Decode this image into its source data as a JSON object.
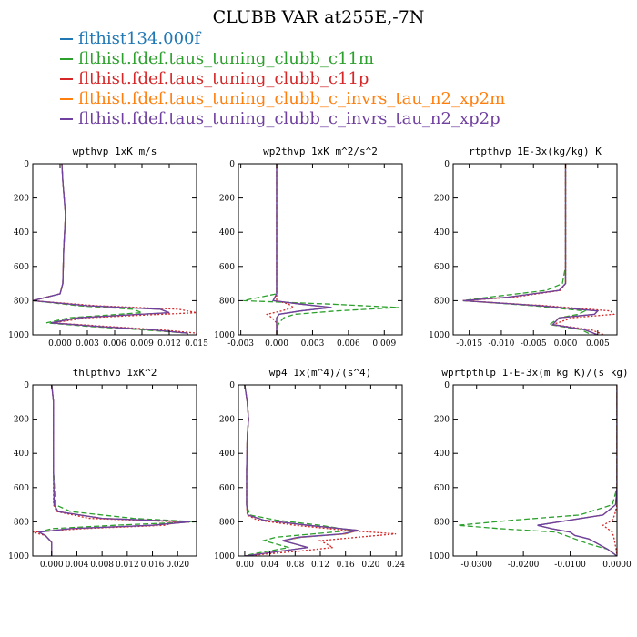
{
  "title": "CLUBB VAR at255E,-7N",
  "legend": [
    {
      "label": "flthist134.000f",
      "color": "#1f77b4"
    },
    {
      "label": "flthist.fdef.taus_tuning_clubb_c11m",
      "color": "#2ca02c"
    },
    {
      "label": "flthist.fdef.taus_tuning_clubb_c11p",
      "color": "#d62728"
    },
    {
      "label": "flthist.fdef.taus_tuning_clubb_c_invrs_tau_n2_xp2m",
      "color": "#ff7f0e"
    },
    {
      "label": "flthist.fdef.taus_tuning_clubb_c_invrs_tau_n2_xp2p",
      "color": "#7040a0"
    }
  ],
  "chart_data": [
    {
      "type": "line",
      "title": "wpthvp  1xK m/s",
      "xlim": [
        -0.003,
        0.015
      ],
      "xticks": [
        "0.000",
        "0.003",
        "0.006",
        "0.009",
        "0.012",
        "0.015"
      ],
      "ylim": [
        1000,
        0
      ],
      "yticks": [
        "0",
        "200",
        "400",
        "600",
        "800",
        "1000"
      ],
      "y": [
        0,
        100,
        300,
        500,
        700,
        760,
        800,
        830,
        850,
        870,
        900,
        930,
        950,
        970,
        990,
        1000
      ],
      "series": [
        {
          "name": "flthist134.000f",
          "values": [
            0.0002,
            0.0003,
            0.0006,
            0.0004,
            0.0003,
            0.0,
            -0.003,
            0.003,
            0.011,
            0.012,
            0.002,
            -0.001,
            0.004,
            0.01,
            0.014,
            0.014
          ]
        },
        {
          "name": "flthist.fdef.taus_tuning_clubb_c11m",
          "values": [
            0.0002,
            0.0003,
            0.0006,
            0.0004,
            0.0003,
            0.0,
            -0.003,
            0.002,
            0.008,
            0.009,
            0.001,
            -0.0015,
            0.003,
            0.009,
            0.014,
            0.014
          ]
        },
        {
          "name": "flthist.fdef.taus_tuning_clubb_c11p",
          "values": [
            0.0002,
            0.0003,
            0.0006,
            0.0004,
            0.0003,
            0.0,
            -0.003,
            0.004,
            0.013,
            0.015,
            0.003,
            -0.0008,
            0.005,
            0.011,
            0.015,
            0.015
          ]
        },
        {
          "name": "flthist.fdef.taus_tuning_clubb_c_invrs_tau_n2_xp2m",
          "values": [
            0.0002,
            0.0003,
            0.0006,
            0.0004,
            0.0003,
            0.0,
            -0.003,
            0.003,
            0.011,
            0.012,
            0.002,
            -0.001,
            0.004,
            0.01,
            0.014,
            0.014
          ]
        },
        {
          "name": "flthist.fdef.taus_tuning_clubb_c_invrs_tau_n2_xp2p",
          "values": [
            0.0002,
            0.0003,
            0.0006,
            0.0004,
            0.0003,
            0.0,
            -0.003,
            0.003,
            0.011,
            0.012,
            0.002,
            -0.001,
            0.004,
            0.01,
            0.014,
            0.014
          ]
        }
      ]
    },
    {
      "type": "line",
      "title": "wp2thvp  1xK m^2/s^2",
      "xlim": [
        -0.0032,
        0.0105
      ],
      "xticks": [
        "-0.003",
        "0.000",
        "0.003",
        "0.006",
        "0.009"
      ],
      "ylim": [
        1000,
        0
      ],
      "yticks": [
        "0",
        "200",
        "400",
        "600",
        "800",
        "1000"
      ],
      "y": [
        0,
        300,
        600,
        760,
        800,
        820,
        840,
        860,
        880,
        900,
        930,
        960,
        1000
      ],
      "series": [
        {
          "name": "flthist134.000f",
          "values": [
            0.0,
            0.0,
            0.0,
            0.0,
            -0.0003,
            0.002,
            0.0045,
            0.002,
            0.0002,
            0.0,
            0.0,
            0.0,
            0.0
          ]
        },
        {
          "name": "flthist.fdef.taus_tuning_clubb_c11m",
          "values": [
            0.0,
            0.0,
            0.0,
            0.0,
            -0.0028,
            0.0045,
            0.0102,
            0.005,
            0.0015,
            0.0006,
            0.0002,
            0.0,
            0.0
          ]
        },
        {
          "name": "flthist.fdef.taus_tuning_clubb_c11p",
          "values": [
            0.0,
            0.0,
            0.0,
            0.0,
            0.0,
            0.001,
            0.0014,
            0.0004,
            -0.0008,
            -0.0004,
            0.0,
            0.0,
            0.0
          ]
        },
        {
          "name": "flthist.fdef.taus_tuning_clubb_c_invrs_tau_n2_xp2m",
          "values": [
            0.0,
            0.0,
            0.0,
            0.0,
            -0.0003,
            0.002,
            0.0044,
            0.002,
            0.0002,
            0.0,
            0.0,
            0.0,
            0.0
          ]
        },
        {
          "name": "flthist.fdef.taus_tuning_clubb_c_invrs_tau_n2_xp2p",
          "values": [
            0.0,
            0.0,
            0.0,
            0.0,
            -0.0003,
            0.002,
            0.0046,
            0.002,
            0.0002,
            0.0,
            0.0,
            0.0,
            0.0
          ]
        }
      ]
    },
    {
      "type": "line",
      "title": "rtpthvp  1E-3x(kg/kg) K",
      "xlim": [
        -0.0175,
        0.008
      ],
      "xticks": [
        "-0.015",
        "-0.010",
        "-0.005",
        "0.000",
        "0.005"
      ],
      "ylim": [
        1000,
        0
      ],
      "yticks": [
        "0",
        "200",
        "400",
        "600",
        "800",
        "1000"
      ],
      "y": [
        0,
        300,
        600,
        700,
        740,
        780,
        800,
        830,
        860,
        880,
        900,
        940,
        970,
        1000
      ],
      "series": [
        {
          "name": "flthist134.000f",
          "values": [
            0.0,
            0.0,
            0.0,
            0.0,
            -0.001,
            -0.009,
            -0.016,
            -0.004,
            0.005,
            0.0045,
            -0.001,
            -0.002,
            0.003,
            0.005
          ]
        },
        {
          "name": "flthist.fdef.taus_tuning_clubb_c11m",
          "values": [
            0.0,
            0.0,
            0.0,
            -0.0005,
            -0.003,
            -0.012,
            -0.016,
            -0.005,
            0.003,
            0.002,
            -0.001,
            -0.0025,
            0.0025,
            0.004
          ]
        },
        {
          "name": "flthist.fdef.taus_tuning_clubb_c11p",
          "values": [
            0.0,
            0.0,
            0.0,
            0.0,
            -0.0008,
            -0.008,
            -0.016,
            -0.003,
            0.007,
            0.0075,
            0.001,
            -0.002,
            0.004,
            0.006
          ]
        },
        {
          "name": "flthist.fdef.taus_tuning_clubb_c_invrs_tau_n2_xp2m",
          "values": [
            0.0,
            0.0,
            0.0,
            0.0,
            -0.001,
            -0.009,
            -0.016,
            -0.004,
            0.005,
            0.0045,
            -0.001,
            -0.002,
            0.003,
            0.005
          ]
        },
        {
          "name": "flthist.fdef.taus_tuning_clubb_c_invrs_tau_n2_xp2p",
          "values": [
            0.0,
            0.0,
            0.0,
            0.0,
            -0.001,
            -0.009,
            -0.016,
            -0.004,
            0.005,
            0.0045,
            -0.001,
            -0.002,
            0.003,
            0.005
          ]
        }
      ]
    },
    {
      "type": "line",
      "title": "thlpthvp  1xK^2",
      "xlim": [
        -0.003,
        0.023
      ],
      "xticks": [
        "0.000",
        "0.004",
        "0.008",
        "0.012",
        "0.016",
        "0.020"
      ],
      "ylim": [
        1000,
        0
      ],
      "yticks": [
        "0",
        "200",
        "400",
        "600",
        "800",
        "1000"
      ],
      "y": [
        0,
        100,
        300,
        500,
        700,
        740,
        780,
        800,
        820,
        840,
        860,
        880,
        920,
        960,
        1000
      ],
      "series": [
        {
          "name": "flthist134.000f",
          "values": [
            0.0,
            0.0003,
            0.0003,
            0.0003,
            0.0004,
            0.001,
            0.008,
            0.022,
            0.016,
            0.003,
            -0.002,
            -0.001,
            0.0,
            0.0,
            0.0
          ]
        },
        {
          "name": "flthist.fdef.taus_tuning_clubb_c11m",
          "values": [
            0.0,
            0.0003,
            0.0003,
            0.0003,
            0.0006,
            0.003,
            0.013,
            0.023,
            0.01,
            0.0,
            -0.002,
            -0.001,
            0.0,
            0.0,
            0.0
          ]
        },
        {
          "name": "flthist.fdef.taus_tuning_clubb_c11p",
          "values": [
            0.0,
            0.0003,
            0.0003,
            0.0003,
            0.0003,
            0.0008,
            0.006,
            0.02,
            0.018,
            0.005,
            -0.003,
            -0.001,
            0.0,
            0.0,
            0.0
          ]
        },
        {
          "name": "flthist.fdef.taus_tuning_clubb_c_invrs_tau_n2_xp2m",
          "values": [
            0.0,
            0.0003,
            0.0003,
            0.0003,
            0.0004,
            0.001,
            0.008,
            0.022,
            0.016,
            0.003,
            -0.002,
            -0.001,
            0.0,
            0.0,
            0.0
          ]
        },
        {
          "name": "flthist.fdef.taus_tuning_clubb_c_invrs_tau_n2_xp2p",
          "values": [
            0.0,
            0.0003,
            0.0003,
            0.0003,
            0.0004,
            0.001,
            0.008,
            0.022,
            0.016,
            0.003,
            -0.002,
            -0.001,
            0.0,
            0.0,
            0.0
          ]
        }
      ]
    },
    {
      "type": "line",
      "title": "wp4  1x(m^4)/(s^4)",
      "xlim": [
        -0.01,
        0.25
      ],
      "xticks": [
        "0.00",
        "0.04",
        "0.08",
        "0.12",
        "0.16",
        "0.20",
        "0.24"
      ],
      "ylim": [
        1000,
        0
      ],
      "yticks": [
        "0",
        "200",
        "400",
        "600",
        "800",
        "1000"
      ],
      "y": [
        0,
        100,
        200,
        300,
        500,
        700,
        760,
        790,
        820,
        850,
        870,
        890,
        910,
        930,
        950,
        970,
        990,
        1000
      ],
      "series": [
        {
          "name": "flthist134.000f",
          "values": [
            0.0,
            0.004,
            0.006,
            0.004,
            0.003,
            0.003,
            0.005,
            0.03,
            0.1,
            0.18,
            0.16,
            0.09,
            0.06,
            0.08,
            0.1,
            0.06,
            0.02,
            0.0
          ]
        },
        {
          "name": "flthist.fdef.taus_tuning_clubb_c11m",
          "values": [
            0.0,
            0.004,
            0.006,
            0.004,
            0.003,
            0.003,
            0.008,
            0.05,
            0.12,
            0.17,
            0.11,
            0.05,
            0.03,
            0.05,
            0.07,
            0.04,
            0.01,
            0.0
          ]
        },
        {
          "name": "flthist.fdef.taus_tuning_clubb_c11p",
          "values": [
            0.0,
            0.004,
            0.006,
            0.004,
            0.003,
            0.003,
            0.004,
            0.02,
            0.08,
            0.16,
            0.24,
            0.18,
            0.12,
            0.13,
            0.14,
            0.09,
            0.03,
            0.0
          ]
        },
        {
          "name": "flthist.fdef.taus_tuning_clubb_c_invrs_tau_n2_xp2m",
          "values": [
            0.0,
            0.004,
            0.006,
            0.004,
            0.003,
            0.003,
            0.005,
            0.03,
            0.1,
            0.18,
            0.16,
            0.09,
            0.06,
            0.08,
            0.1,
            0.06,
            0.02,
            0.0
          ]
        },
        {
          "name": "flthist.fdef.taus_tuning_clubb_c_invrs_tau_n2_xp2p",
          "values": [
            0.0,
            0.004,
            0.006,
            0.004,
            0.003,
            0.003,
            0.005,
            0.03,
            0.1,
            0.18,
            0.155,
            0.085,
            0.06,
            0.08,
            0.1,
            0.06,
            0.02,
            0.0
          ]
        }
      ]
    },
    {
      "type": "line",
      "title": "wprtpthlp  1-E-3x(m kg K)/(s kg)",
      "xlim": [
        -0.035,
        0.0
      ],
      "xticks": [
        "-0.0300",
        "-0.0200",
        "-0.0100",
        "0.0000"
      ],
      "ylim": [
        1000,
        0
      ],
      "yticks": [
        "0",
        "200",
        "400",
        "600",
        "800",
        "1000"
      ],
      "y": [
        0,
        300,
        600,
        700,
        760,
        790,
        820,
        840,
        860,
        880,
        900,
        930,
        960,
        1000
      ],
      "series": [
        {
          "name": "flthist134.000f",
          "values": [
            0.0,
            0.0,
            0.0,
            -0.0003,
            -0.003,
            -0.01,
            -0.017,
            -0.014,
            -0.01,
            -0.009,
            -0.006,
            -0.004,
            -0.002,
            0.0
          ]
        },
        {
          "name": "flthist.fdef.taus_tuning_clubb_c11m",
          "values": [
            0.0,
            0.0,
            0.0,
            -0.001,
            -0.008,
            -0.022,
            -0.034,
            -0.025,
            -0.013,
            -0.011,
            -0.009,
            -0.006,
            -0.002,
            0.0
          ]
        },
        {
          "name": "flthist.fdef.taus_tuning_clubb_c11p",
          "values": [
            0.0,
            0.0,
            0.0,
            0.0,
            -0.0005,
            -0.001,
            -0.003,
            -0.002,
            -0.001,
            -0.0008,
            -0.0006,
            -0.0004,
            -0.0002,
            0.0
          ]
        },
        {
          "name": "flthist.fdef.taus_tuning_clubb_c_invrs_tau_n2_xp2m",
          "values": [
            0.0,
            0.0,
            0.0,
            -0.0003,
            -0.003,
            -0.01,
            -0.017,
            -0.014,
            -0.01,
            -0.009,
            -0.006,
            -0.004,
            -0.002,
            0.0
          ]
        },
        {
          "name": "flthist.fdef.taus_tuning_clubb_c_invrs_tau_n2_xp2p",
          "values": [
            0.0,
            0.0,
            0.0,
            -0.0003,
            -0.003,
            -0.01,
            -0.017,
            -0.014,
            -0.01,
            -0.009,
            -0.006,
            -0.004,
            -0.002,
            0.0
          ]
        }
      ]
    }
  ]
}
